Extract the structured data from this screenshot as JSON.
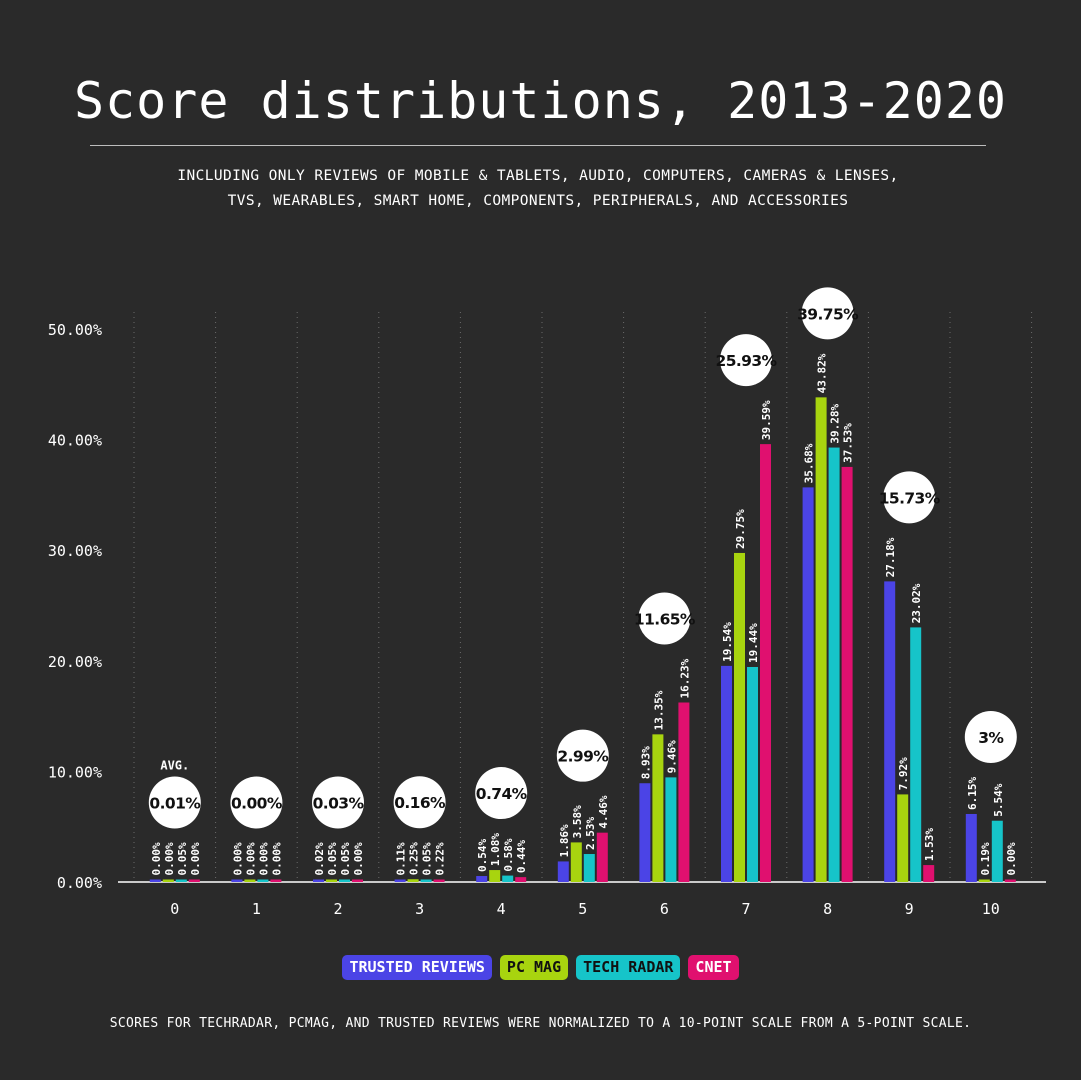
{
  "title": "Score distributions, 2013-2020",
  "subtitle_line1": "INCLUDING ONLY REVIEWS OF MOBILE & TABLETS, AUDIO, COMPUTERS, CAMERAS & LENSES,",
  "subtitle_line2": "TVS, WEARABLES, SMART HOME, COMPONENTS, PERIPHERALS, AND ACCESSORIES",
  "footnote": "SCORES FOR TECHRADAR, PCMAG, AND TRUSTED REVIEWS WERE NORMALIZED TO A 10-POINT SCALE FROM A 5-POINT SCALE.",
  "avg_label": "AVG.",
  "legend": [
    {
      "name": "TRUSTED REVIEWS",
      "color": "#4b44e6",
      "text_color": "#ffffff"
    },
    {
      "name": "PC MAG",
      "color": "#a8d40f",
      "text_color": "#111111"
    },
    {
      "name": "TECH RADAR",
      "color": "#16c4c9",
      "text_color": "#111111"
    },
    {
      "name": "CNET",
      "color": "#e0106f",
      "text_color": "#ffffff"
    }
  ],
  "chart_data": {
    "type": "bar",
    "title": "Score distributions, 2013-2020",
    "categories": [
      "0",
      "1",
      "2",
      "3",
      "4",
      "5",
      "6",
      "7",
      "8",
      "9",
      "10"
    ],
    "ylim": [
      0,
      50
    ],
    "yticks": [
      "0.00%",
      "10.00%",
      "20.00%",
      "30.00%",
      "40.00%",
      "50.00%"
    ],
    "series": [
      {
        "name": "TRUSTED REVIEWS",
        "color": "#4b44e6",
        "values": [
          0.0,
          0.0,
          0.02,
          0.11,
          0.54,
          1.86,
          8.93,
          19.54,
          35.68,
          27.18,
          6.15
        ],
        "labels": [
          "0.00%",
          "0.00%",
          "0.02%",
          "0.11%",
          "0.54%",
          "1.86%",
          "8.93%",
          "19.54%",
          "35.68%",
          "27.18%",
          "6.15%"
        ]
      },
      {
        "name": "PC MAG",
        "color": "#a8d40f",
        "values": [
          0.0,
          0.0,
          0.05,
          0.25,
          1.08,
          3.58,
          13.35,
          29.75,
          43.82,
          7.92,
          0.19
        ],
        "labels": [
          "0.00%",
          "0.00%",
          "0.05%",
          "0.25%",
          "1.08%",
          "3.58%",
          "13.35%",
          "29.75%",
          "43.82%",
          "7.92%",
          "0.19%"
        ]
      },
      {
        "name": "TECH RADAR",
        "color": "#16c4c9",
        "values": [
          0.05,
          0.0,
          0.05,
          0.05,
          0.58,
          2.53,
          9.46,
          19.44,
          39.28,
          23.02,
          5.54
        ],
        "labels": [
          "0.05%",
          "0.00%",
          "0.05%",
          "0.05%",
          "0.58%",
          "2.53%",
          "9.46%",
          "19.44%",
          "39.28%",
          "23.02%",
          "5.54%"
        ]
      },
      {
        "name": "CNET",
        "color": "#e0106f",
        "values": [
          0.0,
          0.0,
          0.0,
          0.22,
          0.44,
          4.46,
          16.23,
          39.59,
          37.53,
          1.53,
          0.0
        ],
        "labels": [
          "0.00%",
          "0.00%",
          "0.00%",
          "0.22%",
          "0.44%",
          "4.46%",
          "16.23%",
          "39.59%",
          "37.53%",
          "1.53%",
          "0.00%"
        ]
      }
    ],
    "averages": [
      0.01,
      0.0,
      0.03,
      0.16,
      0.74,
      2.99,
      11.65,
      25.93,
      39.75,
      15.73,
      3
    ],
    "average_labels": [
      "0.01%",
      "0.00%",
      "0.03%",
      "0.16%",
      "0.74%",
      "2.99%",
      "11.65%",
      "25.93%",
      "39.75%",
      "15.73%",
      "3%"
    ]
  }
}
